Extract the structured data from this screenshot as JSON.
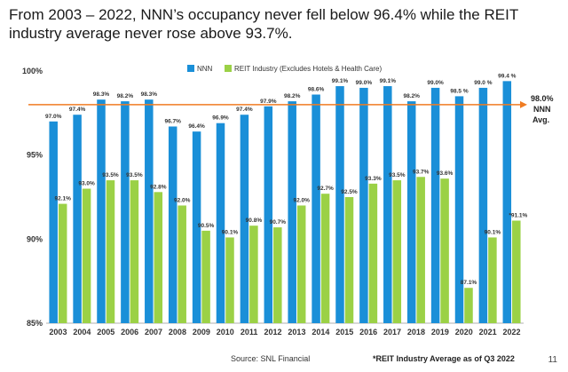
{
  "header": {
    "title": "From 2003 – 2022, NNN’s occupancy never fell below 96.4% while the REIT industry average never rose above 93.7%."
  },
  "footer": {
    "source": "Source: SNL Financial",
    "note": "*REIT Industry Average as of Q3 2022",
    "slide_number": "11"
  },
  "colors": {
    "nnn": "#1a8fd8",
    "reit": "#9bd146",
    "avg_line": "#f07c22"
  },
  "chart_data": {
    "type": "bar",
    "title": "",
    "xlabel": "",
    "ylabel": "",
    "ylim": [
      85,
      100
    ],
    "yticks": [
      85,
      90,
      95,
      100
    ],
    "ytick_labels": [
      "85%",
      "90%",
      "95%",
      "100%"
    ],
    "categories": [
      "2003",
      "2004",
      "2005",
      "2006",
      "2007",
      "2008",
      "2009",
      "2010",
      "2011",
      "2012",
      "2013",
      "2014",
      "2015",
      "2016",
      "2017",
      "2018",
      "2019",
      "2020",
      "2021",
      "2022"
    ],
    "series": [
      {
        "name": "NNN",
        "values": [
          97.0,
          97.4,
          98.3,
          98.2,
          98.3,
          96.7,
          96.4,
          96.9,
          97.4,
          97.9,
          98.2,
          98.6,
          99.1,
          99.0,
          99.1,
          98.2,
          99.0,
          98.5,
          99.0,
          99.4
        ],
        "labels": [
          "97.0%",
          "97.4%",
          "98.3%",
          "98.2%",
          "98.3%",
          "96.7%",
          "96.4%",
          "96.9%",
          "97.4%",
          "97.9%",
          "98.2%",
          "98.6%",
          "99.1%",
          "99.0%",
          "99.1%",
          "98.2%",
          "99.0%",
          "98.5 %",
          "99.0 %",
          "99.4 %"
        ]
      },
      {
        "name": "REIT Industry (Excludes Hotels & Health Care)",
        "values": [
          92.1,
          93.0,
          93.5,
          93.5,
          92.8,
          92.0,
          90.5,
          90.1,
          90.8,
          90.7,
          92.0,
          92.7,
          92.5,
          93.3,
          93.5,
          93.7,
          93.6,
          87.1,
          90.1,
          91.1
        ],
        "labels": [
          "92.1%",
          "93.0%",
          "93.5%",
          "93.5%",
          "92.8%",
          "92.0%",
          "90.5%",
          "90.1%",
          "90.8%",
          "90.7%",
          "92.0%",
          "92.7%",
          "92.5%",
          "93.3%",
          "93.5%",
          "93.7%",
          "93.6%",
          "87.1%",
          "90.1%",
          "*91.1%"
        ]
      }
    ],
    "average_line": {
      "value": 98.0,
      "label_value": "98.0%",
      "label_line1": "NNN",
      "label_line2": "Avg."
    },
    "legend_position": "top-left"
  }
}
